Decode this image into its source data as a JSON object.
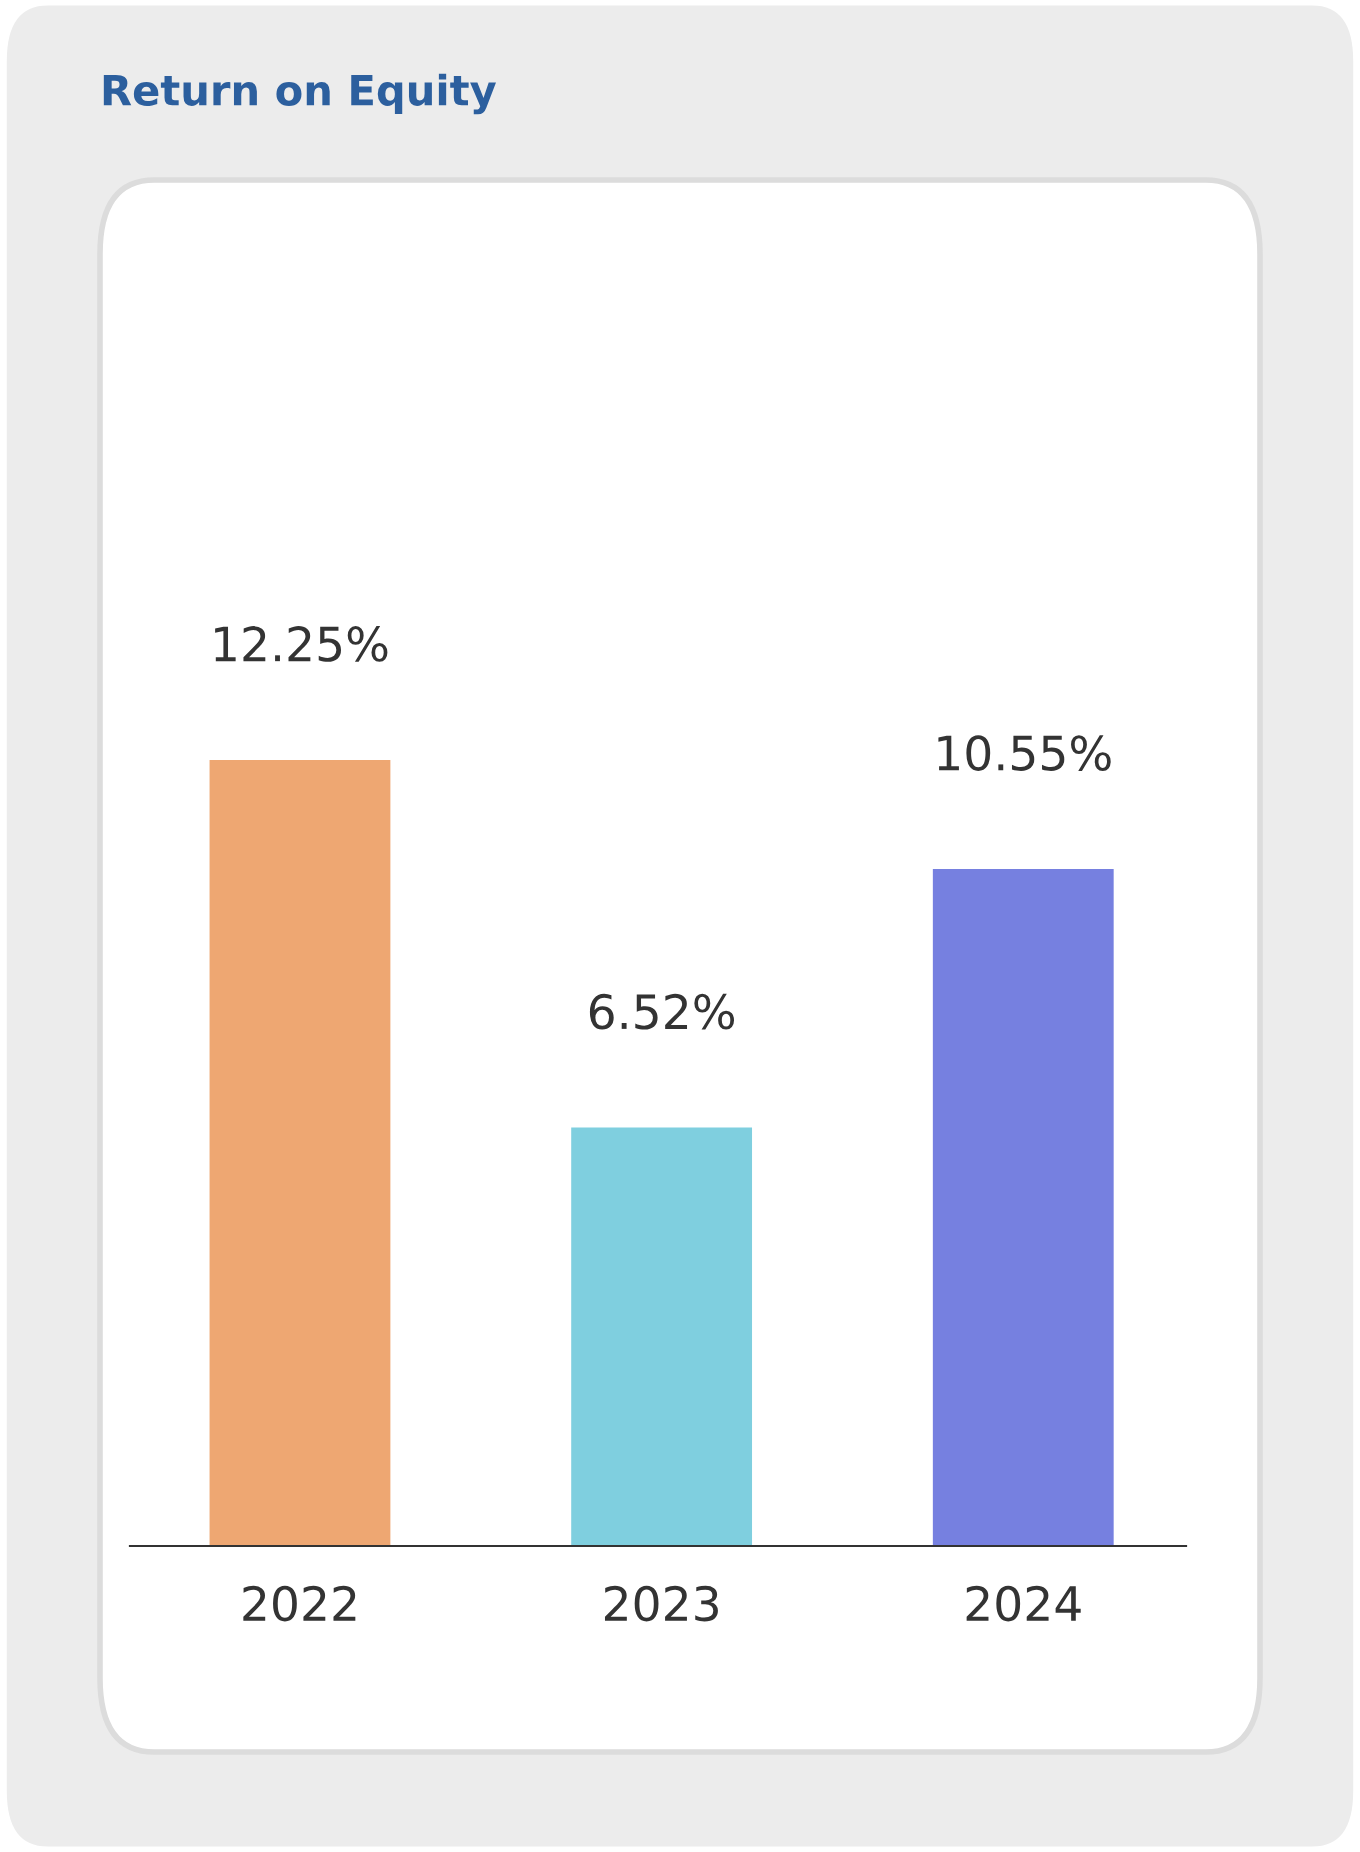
{
  "chart_data": {
    "type": "bar",
    "title": "Return on Equity",
    "categories": [
      "2022",
      "2023",
      "2024"
    ],
    "values": [
      12.25,
      6.52,
      10.55
    ],
    "colors": [
      "#eea772",
      "#7fcfdf",
      "#7680e0"
    ],
    "value_labels": [
      "12.25%",
      "6.52%",
      "10.55%"
    ],
    "grid": false,
    "legend": false
  }
}
